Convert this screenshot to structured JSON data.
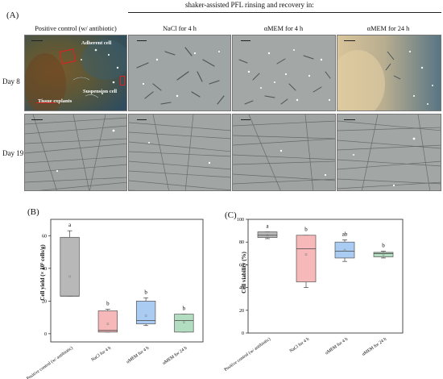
{
  "panel_a": {
    "letter": "(A)",
    "group_header": "shaker-assisted PFL rinsing and recovery in:",
    "columns": [
      "Positive control (w/ antibiotic)",
      "NaCl for 4 h",
      "αMEM for 4 h",
      "αMEM for 24 h"
    ],
    "rows": [
      "Day 8",
      "Day 19"
    ],
    "annotations": {
      "adherent": "Adherent cell",
      "suspension": "Suspension cell",
      "tissue": "Tissue explants"
    },
    "colors": {
      "annotation": "#e02020"
    }
  },
  "panel_b": {
    "letter": "(B)"
  },
  "panel_c": {
    "letter": "(C)"
  },
  "chart_data": [
    {
      "type": "box",
      "ylabel": "Cell yield (× 10⁵ cells/g)",
      "ylim": [
        -5,
        70
      ],
      "yticks": [
        0,
        20,
        40,
        60
      ],
      "categories": [
        "Positive control (w/ antibiotic)",
        "NaCl for 4 h",
        "αMEM for 4 h",
        "αMEM for 24 h"
      ],
      "boxes": [
        {
          "whisker_low": 23,
          "q1": 23,
          "median": 23,
          "q3": 59,
          "whisker_high": 63,
          "mean": 35,
          "letter": "a",
          "color": "#b8b8b8"
        },
        {
          "whisker_low": 1,
          "q1": 1,
          "median": 2,
          "q3": 14,
          "whisker_high": 15,
          "mean": 6,
          "letter": "b",
          "color": "#f6b8b8"
        },
        {
          "whisker_low": 5,
          "q1": 6,
          "median": 8,
          "q3": 20,
          "whisker_high": 22,
          "mean": 11,
          "letter": "b",
          "color": "#aacbf2"
        },
        {
          "whisker_low": 1,
          "q1": 1,
          "median": 8,
          "q3": 12,
          "whisker_high": 12,
          "mean": 7,
          "letter": "b",
          "color": "#b3ddc0"
        }
      ]
    },
    {
      "type": "box",
      "ylabel": "Cell viability (%)",
      "ylim": [
        0,
        100
      ],
      "yticks": [
        0,
        20,
        40,
        60,
        80,
        100
      ],
      "categories": [
        "Positive control (w/ antibiotic)",
        "NaCl for 4 h",
        "αMEM for 4 h",
        "αMEM for 24 h"
      ],
      "boxes": [
        {
          "whisker_low": 83,
          "q1": 84,
          "median": 86,
          "q3": 89,
          "whisker_high": 89,
          "mean": 86,
          "letter": "a",
          "color": "#b8b8b8"
        },
        {
          "whisker_low": 40,
          "q1": 45,
          "median": 74,
          "q3": 86,
          "whisker_high": 86,
          "mean": 69,
          "letter": "b",
          "color": "#f6b8b8"
        },
        {
          "whisker_low": 63,
          "q1": 66,
          "median": 72,
          "q3": 80,
          "whisker_high": 82,
          "mean": 73,
          "letter": "ab",
          "color": "#aacbf2"
        },
        {
          "whisker_low": 66,
          "q1": 67,
          "median": 70,
          "q3": 71,
          "whisker_high": 72,
          "mean": 69,
          "letter": "b",
          "color": "#b3ddc0"
        }
      ]
    }
  ]
}
